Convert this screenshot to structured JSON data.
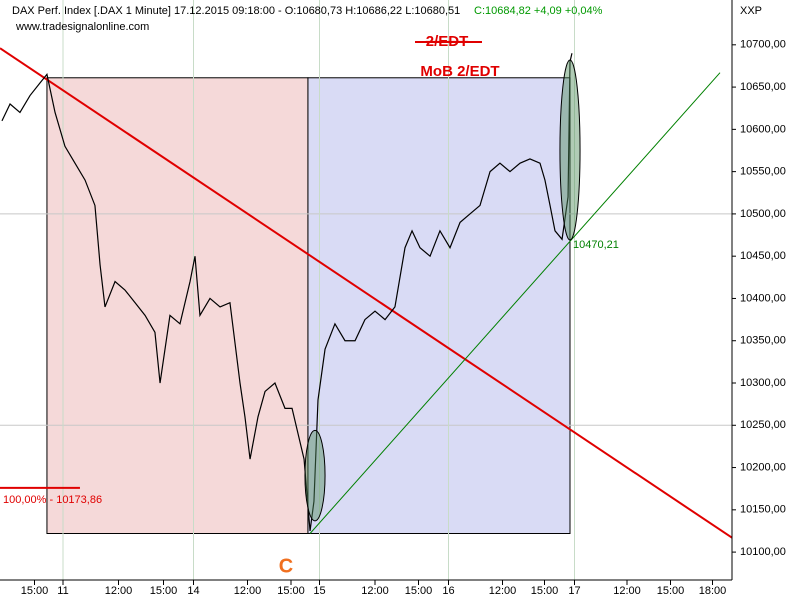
{
  "chart_data": {
    "type": "line",
    "title": "DAX Perf. Index [.DAX  1 Minute] 17.12.2015 09:18:00 - O:10680,73 H:10686,22 L:10680,51",
    "quote": "C:10684,82 +4,09 +0,04%",
    "source": "www.tradesignalonline.com",
    "axis_label": "XXP",
    "x": [
      0.13,
      0.67,
      1.33,
      2,
      2.67,
      3.13,
      3.67,
      4.33,
      5,
      5.67,
      6.33,
      6.67,
      7,
      7.67,
      8.33,
      9,
      9.67,
      10.33,
      10.67,
      11.33,
      12,
      12.67,
      13,
      13.33,
      14,
      14.67,
      15.33,
      16,
      16.33,
      16.67,
      17.2,
      17.67,
      18.33,
      19,
      19.47,
      19.87,
      20.27,
      20.67,
      20.93,
      21.2,
      21.67,
      22.33,
      23,
      23.67,
      24.33,
      25,
      25.67,
      26.33,
      27,
      27.47,
      28,
      28.67,
      29.33,
      30,
      30.67,
      31.33,
      32,
      32.67,
      33.33,
      34,
      34.67,
      35.33,
      36,
      36.33,
      36.67,
      37,
      37.47,
      37.87,
      38,
      38.13
    ],
    "series": [
      {
        "name": "DAX",
        "color": "#000000",
        "values": [
          10610,
          10630,
          10620,
          10640,
          10655,
          10665,
          10620,
          10580,
          10560,
          10540,
          10510,
          10440,
          10390,
          10420,
          10410,
          10395,
          10380,
          10360,
          10300,
          10380,
          10370,
          10420,
          10450,
          10380,
          10400,
          10390,
          10395,
          10300,
          10260,
          10210,
          10260,
          10290,
          10300,
          10270,
          10270,
          10240,
          10210,
          10125,
          10160,
          10280,
          10340,
          10370,
          10350,
          10350,
          10375,
          10385,
          10375,
          10390,
          10460,
          10480,
          10460,
          10450,
          10480,
          10460,
          10490,
          10500,
          10510,
          10550,
          10560,
          10550,
          10560,
          10565,
          10560,
          10540,
          10510,
          10480,
          10470,
          10520,
          10680,
          10690
        ]
      }
    ],
    "xlim": [
      0,
      48.8
    ],
    "xticks": [
      {
        "value": 2.3,
        "label": "15:00"
      },
      {
        "value": 4.2,
        "label": "11"
      },
      {
        "value": 7.9,
        "label": "12:00"
      },
      {
        "value": 10.9,
        "label": "15:00"
      },
      {
        "value": 12.9,
        "label": "14"
      },
      {
        "value": 16.5,
        "label": "12:00"
      },
      {
        "value": 19.4,
        "label": "15:00"
      },
      {
        "value": 21.3,
        "label": "15"
      },
      {
        "value": 25,
        "label": "12:00"
      },
      {
        "value": 27.9,
        "label": "15:00"
      },
      {
        "value": 29.9,
        "label": "16"
      },
      {
        "value": 33.5,
        "label": "12:00"
      },
      {
        "value": 36.3,
        "label": "15:00"
      },
      {
        "value": 38.3,
        "label": "17"
      },
      {
        "value": 41.8,
        "label": "12:00"
      },
      {
        "value": 44.7,
        "label": "15:00"
      },
      {
        "value": 47.5,
        "label": "18:00"
      }
    ],
    "ylim": [
      10067,
      10753
    ],
    "yticks": [
      {
        "value": 10100,
        "label": "10100,00"
      },
      {
        "value": 10150,
        "label": "10150,00"
      },
      {
        "value": 10200,
        "label": "10200,00"
      },
      {
        "value": 10250,
        "label": "10250,00"
      },
      {
        "value": 10300,
        "label": "10300,00"
      },
      {
        "value": 10350,
        "label": "10350,00"
      },
      {
        "value": 10400,
        "label": "10400,00"
      },
      {
        "value": 10450,
        "label": "10450,00"
      },
      {
        "value": 10500,
        "label": "10500,00"
      },
      {
        "value": 10550,
        "label": "10550,00"
      },
      {
        "value": 10600,
        "label": "10600,00"
      },
      {
        "value": 10650,
        "label": "10650,00"
      },
      {
        "value": 10700,
        "label": "10700,00"
      }
    ],
    "grid": true,
    "boxes": [
      {
        "color": "#f5d9d9",
        "x": [
          3.13,
          20.53
        ],
        "y": [
          10122,
          10661
        ]
      },
      {
        "color": "#d9dbf5",
        "x": [
          20.53,
          38
        ],
        "y": [
          10122,
          10661
        ]
      }
    ],
    "ellipses": [
      {
        "x": [
          20.33,
          21.67
        ],
        "y": [
          10137,
          10244
        ]
      },
      {
        "x": [
          37.33,
          38.67
        ],
        "y": [
          10469,
          10682
        ]
      }
    ],
    "trendlines": [
      {
        "color": "#e00000",
        "x": [
          0,
          48.8
        ],
        "y": [
          10696,
          10117
        ]
      },
      {
        "color": "#008000",
        "x": [
          20.67,
          48
        ],
        "y": [
          10122,
          10667
        ]
      }
    ],
    "level": {
      "color": "#e00000",
      "x": [
        0,
        5.33
      ],
      "y": 10176,
      "label": "100,00% - 10173,86"
    },
    "annotations": {
      "struck": "2/EDT",
      "target": "MoB 2/EDT",
      "touch": "10470,21",
      "wave": "C"
    }
  }
}
